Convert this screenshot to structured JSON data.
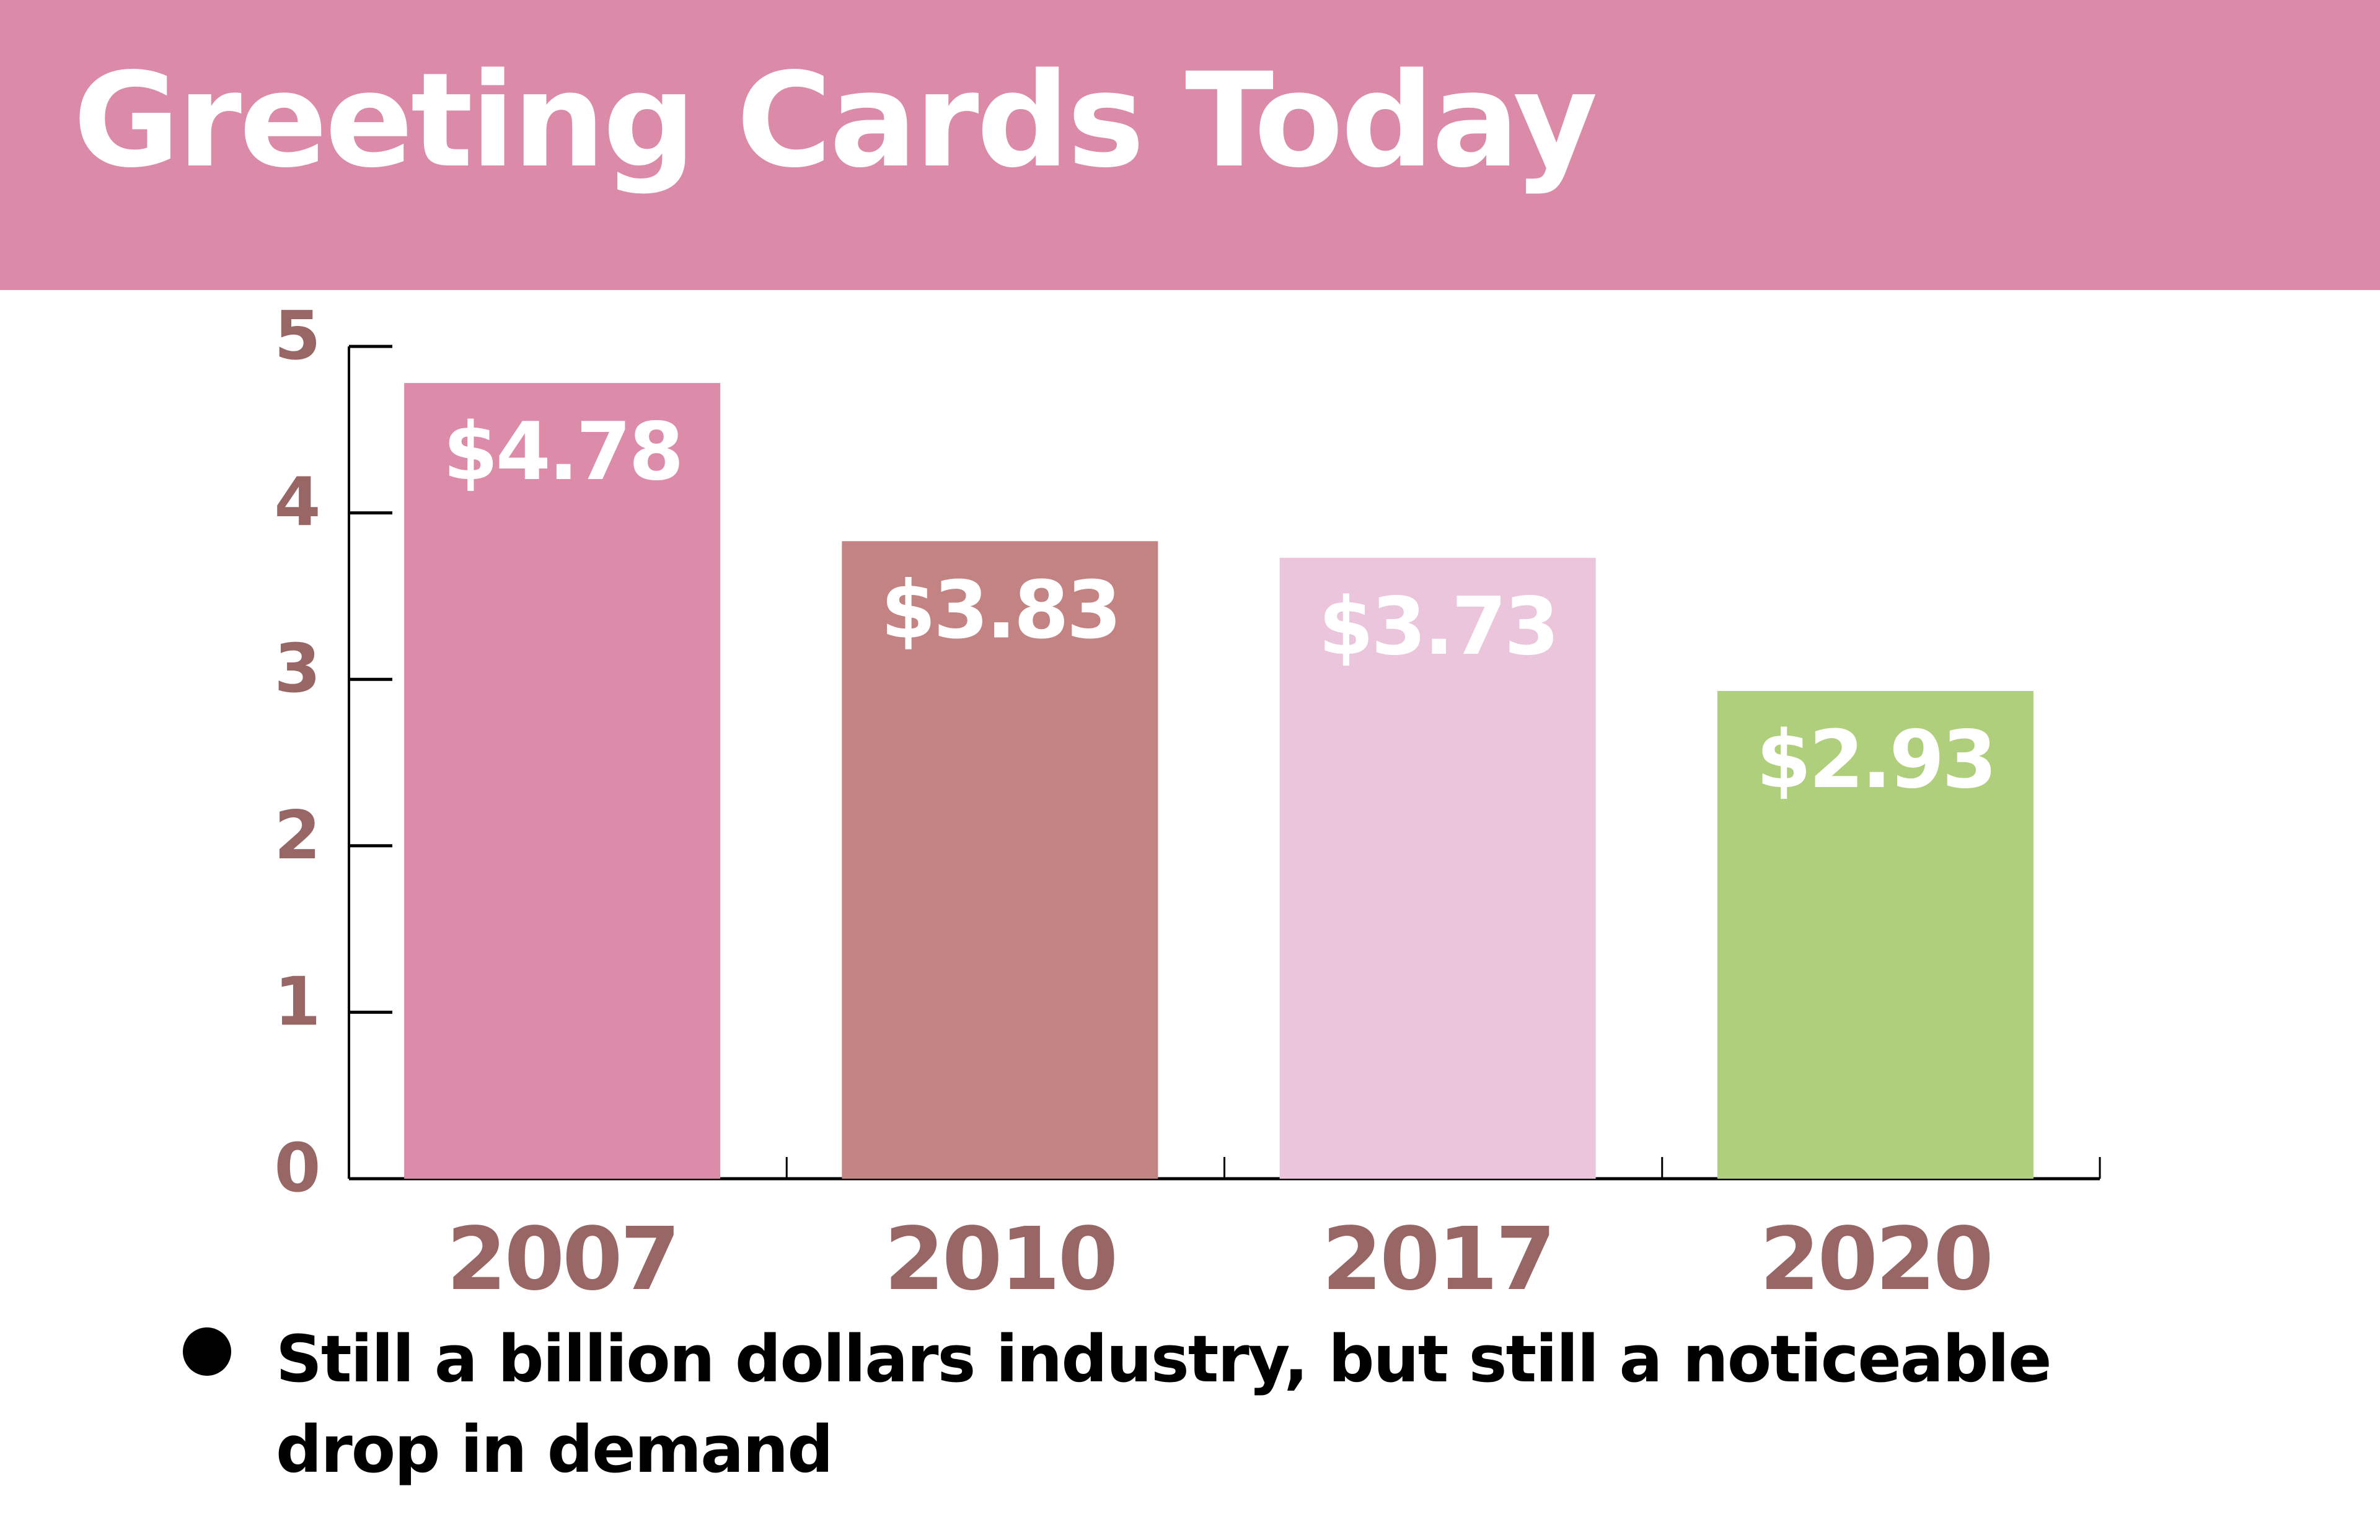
{
  "header": {
    "title": "Greeting Cards Today"
  },
  "chart_data": {
    "type": "bar",
    "title": "Greeting Cards Today",
    "xlabel": "",
    "ylabel": "",
    "categories": [
      "2007",
      "2010",
      "2017",
      "2020"
    ],
    "values": [
      4.78,
      3.83,
      3.73,
      2.93
    ],
    "data_labels": [
      "$4.78",
      "$3.83",
      "$3.73",
      "$2.93"
    ],
    "bar_colors": [
      "#dc8ba9",
      "#c48383",
      "#ebc5db",
      "#b0cf7d"
    ],
    "ylim": [
      0,
      5
    ],
    "yticks": [
      "0",
      "1",
      "2",
      "3",
      "4",
      "5"
    ],
    "grid": false,
    "legend": "none",
    "tick_label_color": "#996666"
  },
  "notes": {
    "bullet": "Still a billion dollars industry, but still a noticeable drop in demand"
  }
}
